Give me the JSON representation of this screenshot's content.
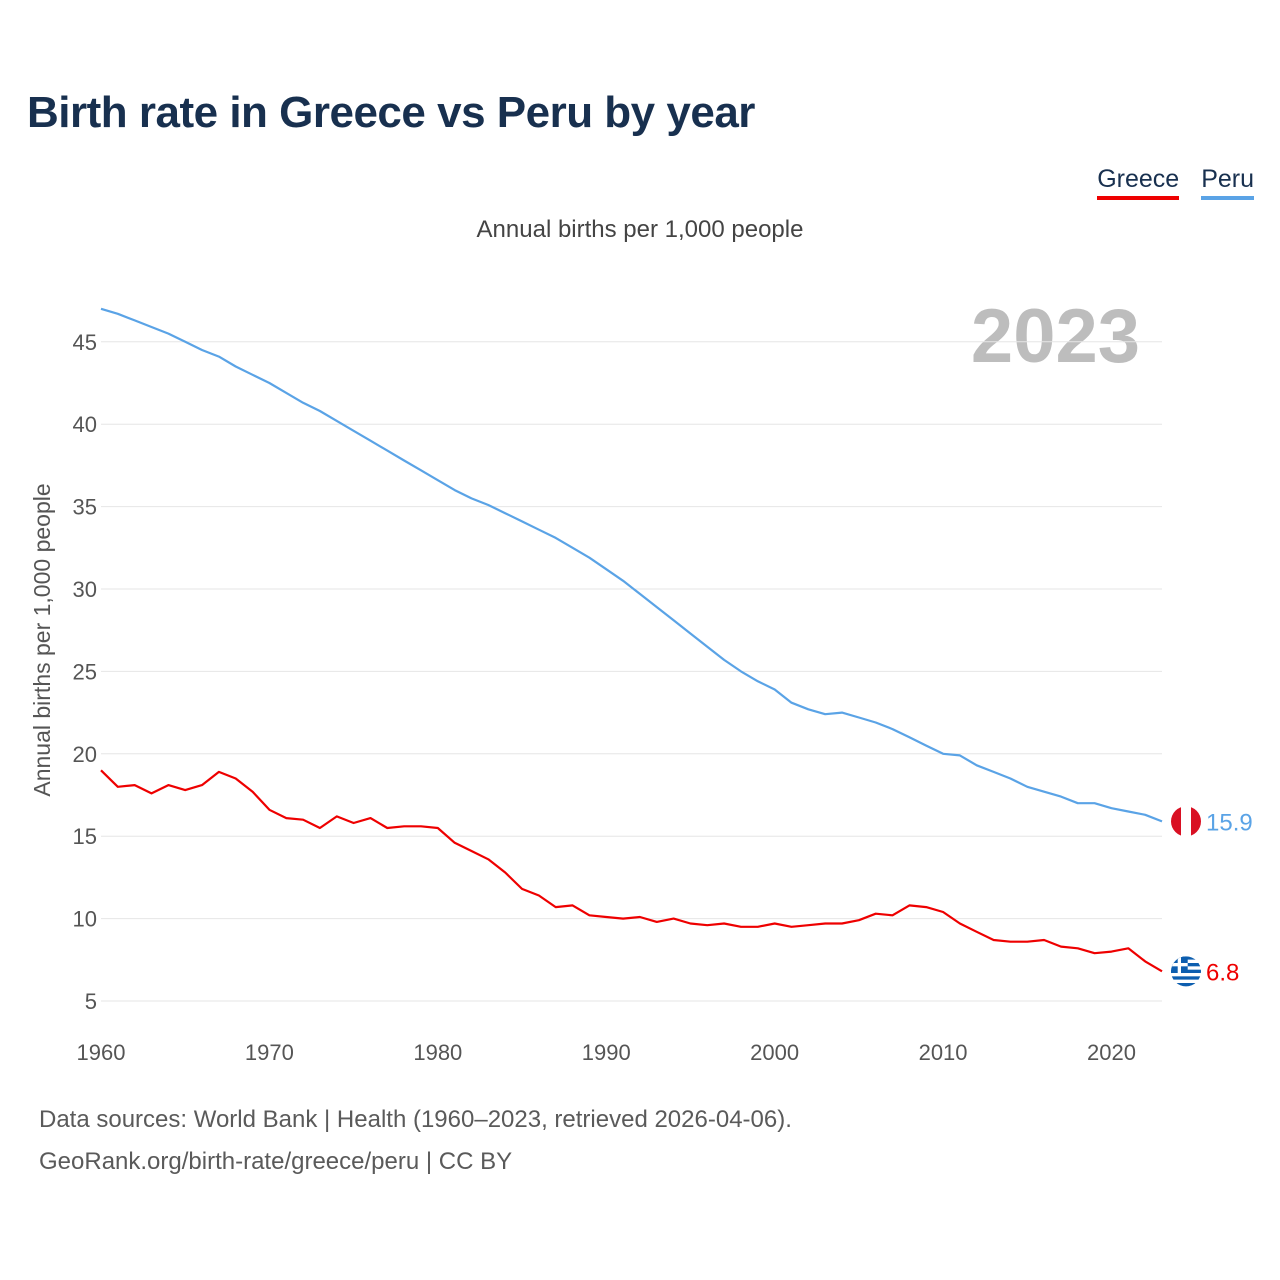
{
  "title": "Birth rate in Greece vs Peru by year",
  "legend": {
    "items": [
      {
        "label": "Greece",
        "color": "#ee0000"
      },
      {
        "label": "Peru",
        "color": "#5aa3e6"
      }
    ]
  },
  "subtitle": "Annual births per 1,000 people",
  "chart_data": {
    "type": "line",
    "title": "Birth rate in Greece vs Peru by year",
    "subtitle": "Annual births per 1,000 people",
    "xlabel": "",
    "ylabel": "Annual births per 1,000 people",
    "xlim": [
      1960,
      2023
    ],
    "ylim": [
      5,
      47
    ],
    "x_ticks": [
      1960,
      1970,
      1980,
      1990,
      2000,
      2010,
      2020
    ],
    "y_ticks": [
      5,
      10,
      15,
      20,
      25,
      30,
      35,
      40,
      45
    ],
    "grid": true,
    "year_watermark": "2023",
    "x": [
      1960,
      1961,
      1962,
      1963,
      1964,
      1965,
      1966,
      1967,
      1968,
      1969,
      1970,
      1971,
      1972,
      1973,
      1974,
      1975,
      1976,
      1977,
      1978,
      1979,
      1980,
      1981,
      1982,
      1983,
      1984,
      1985,
      1986,
      1987,
      1988,
      1989,
      1990,
      1991,
      1992,
      1993,
      1994,
      1995,
      1996,
      1997,
      1998,
      1999,
      2000,
      2001,
      2002,
      2003,
      2004,
      2005,
      2006,
      2007,
      2008,
      2009,
      2010,
      2011,
      2012,
      2013,
      2014,
      2015,
      2016,
      2017,
      2018,
      2019,
      2020,
      2021,
      2022,
      2023
    ],
    "series": [
      {
        "name": "Peru",
        "color": "#5aa3e6",
        "end_label": "15.9",
        "flag": "peru-flag-icon",
        "values": [
          47.0,
          46.7,
          46.3,
          45.9,
          45.5,
          45.0,
          44.5,
          44.1,
          43.5,
          43.0,
          42.5,
          41.9,
          41.3,
          40.8,
          40.2,
          39.6,
          39.0,
          38.4,
          37.8,
          37.2,
          36.6,
          36.0,
          35.5,
          35.1,
          34.6,
          34.1,
          33.6,
          33.1,
          32.5,
          31.9,
          31.2,
          30.5,
          29.7,
          28.9,
          28.1,
          27.3,
          26.5,
          25.7,
          25.0,
          24.4,
          23.9,
          23.1,
          22.7,
          22.4,
          22.5,
          22.2,
          21.9,
          21.5,
          21.0,
          20.5,
          20.0,
          19.9,
          19.3,
          18.9,
          18.5,
          18.0,
          17.7,
          17.4,
          17.0,
          17.0,
          16.7,
          16.5,
          16.3,
          15.9
        ]
      },
      {
        "name": "Greece",
        "color": "#ee0000",
        "end_label": "6.8",
        "flag": "greece-flag-icon",
        "values": [
          19.0,
          18.0,
          18.1,
          17.6,
          18.1,
          17.8,
          18.1,
          18.9,
          18.5,
          17.7,
          16.6,
          16.1,
          16.0,
          15.5,
          16.2,
          15.8,
          16.1,
          15.5,
          15.6,
          15.6,
          15.5,
          14.6,
          14.1,
          13.6,
          12.8,
          11.8,
          11.4,
          10.7,
          10.8,
          10.2,
          10.1,
          10.0,
          10.1,
          9.8,
          10.0,
          9.7,
          9.6,
          9.7,
          9.5,
          9.5,
          9.7,
          9.5,
          9.6,
          9.7,
          9.7,
          9.9,
          10.3,
          10.2,
          10.8,
          10.7,
          10.4,
          9.7,
          9.2,
          8.7,
          8.6,
          8.6,
          8.7,
          8.3,
          8.2,
          7.9,
          8.0,
          8.2,
          7.4,
          6.8
        ]
      }
    ]
  },
  "footer": {
    "line1": "Data sources: World Bank | Health (1960–2023, retrieved 2026-04-06).",
    "line2": "GeoRank.org/birth-rate/greece/peru | CC BY"
  }
}
